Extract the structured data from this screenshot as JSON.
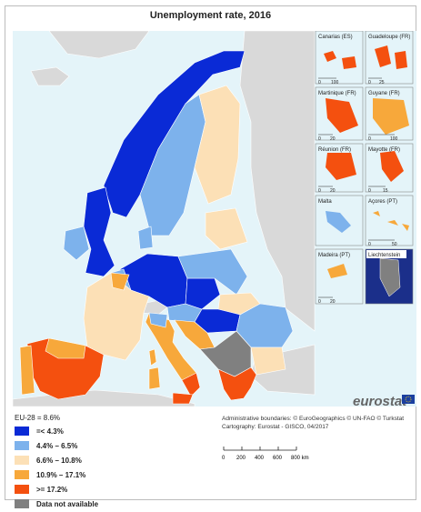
{
  "title": "Unemployment rate, 2016",
  "eu_average": "EU-28 = 8.6%",
  "legend": [
    {
      "label": "=< 4.3%",
      "color": "#0a2ad6"
    },
    {
      "label": "4.4% – 6.5%",
      "color": "#7db2ec"
    },
    {
      "label": "6.6% – 10.8%",
      "color": "#fce0b6"
    },
    {
      "label": "10.9% – 17.1%",
      "color": "#f7a83b"
    },
    {
      "label": ">= 17.2%",
      "color": "#f4500f"
    },
    {
      "label": "Data not available",
      "color": "#808080"
    }
  ],
  "credits": {
    "line1": "Administrative boundaries: © EuroGeographics © UN-FAO © Turkstat",
    "line2": "Cartography: Eurostat - GISCO, 04/2017"
  },
  "scale": {
    "ticks": [
      "0",
      "200",
      "400",
      "600",
      "800 km"
    ]
  },
  "logo": "eurostat",
  "insets": [
    {
      "name": "Canarias (ES)",
      "scale_ticks": [
        "0",
        "100"
      ]
    },
    {
      "name": "Guadeloupe (FR)",
      "scale_ticks": [
        "0",
        "25"
      ]
    },
    {
      "name": "Martinique (FR)",
      "scale_ticks": [
        "0",
        "20"
      ]
    },
    {
      "name": "Guyane (FR)",
      "scale_ticks": [
        "0",
        "100"
      ]
    },
    {
      "name": "Réunion (FR)",
      "scale_ticks": [
        "0",
        "20"
      ]
    },
    {
      "name": "Mayotte (FR)",
      "scale_ticks": [
        "0",
        "15"
      ]
    },
    {
      "name": "Malta",
      "scale_ticks": []
    },
    {
      "name": "Açores (PT)",
      "scale_ticks": [
        "0",
        "50"
      ]
    },
    {
      "name": "Madeira (PT)",
      "scale_ticks": [
        "0",
        "20"
      ]
    },
    {
      "name": "Liechtenstein",
      "scale_ticks": []
    }
  ],
  "colors": {
    "sea": "#e4f4f9",
    "non_eu_land": "#d9d9d9",
    "border": "#ffffff"
  }
}
